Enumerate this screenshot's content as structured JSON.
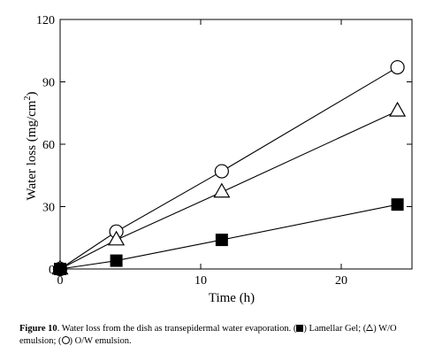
{
  "chart_data": {
    "type": "line",
    "xlabel": "Time (h)",
    "ylabel_main": "Water  loss  (mg/cm",
    "ylabel_sup": "2",
    "ylabel_end": ")",
    "xlim": [
      0,
      25
    ],
    "ylim": [
      0,
      120
    ],
    "xticks": [
      0,
      10,
      20
    ],
    "yticks": [
      0,
      30,
      60,
      90,
      120
    ],
    "grid": false,
    "series": [
      {
        "marker": "circle",
        "x": [
          0,
          4,
          11.5,
          24
        ],
        "y": [
          0,
          18,
          47,
          97
        ]
      },
      {
        "marker": "triangle",
        "x": [
          0,
          4,
          11.5,
          24
        ],
        "y": [
          0,
          14,
          37,
          76
        ]
      },
      {
        "marker": "square",
        "x": [
          0,
          4,
          11.5,
          24
        ],
        "y": [
          0,
          4,
          14,
          31
        ]
      }
    ]
  },
  "caption": {
    "figure_label": "Figure 10",
    "text_1": ". Water loss from the dish as transepidermal water evaporation. (",
    "text_2": ") Lamellar Gel; (",
    "text_3": ") W/O emulsion; (",
    "text_4": ") O/W emulsion."
  }
}
